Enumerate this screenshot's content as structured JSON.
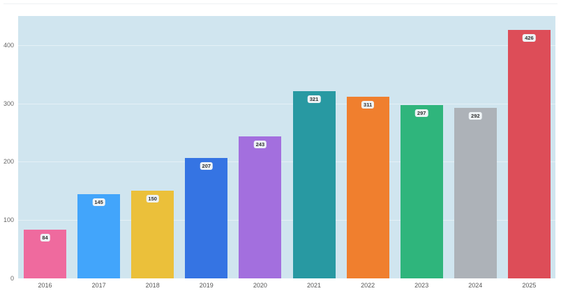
{
  "chart_data": {
    "type": "bar",
    "title": "",
    "xlabel": "",
    "ylabel": "",
    "categories": [
      "2016",
      "2017",
      "2018",
      "2019",
      "2020",
      "2021",
      "2022",
      "2023",
      "2024",
      "2025"
    ],
    "values": [
      84,
      145,
      150,
      207,
      243,
      321,
      311,
      297,
      292,
      426
    ],
    "colors": [
      "#ef6a9e",
      "#42a5fb",
      "#ebc03a",
      "#3574e3",
      "#a36fde",
      "#2899a2",
      "#f07f2e",
      "#2fb57c",
      "#adb2b8",
      "#dd4d58"
    ],
    "ylim": [
      0,
      450
    ],
    "yticks": [
      0,
      100,
      200,
      300,
      400
    ],
    "grid": true,
    "legend": "none",
    "data_labels": true
  }
}
